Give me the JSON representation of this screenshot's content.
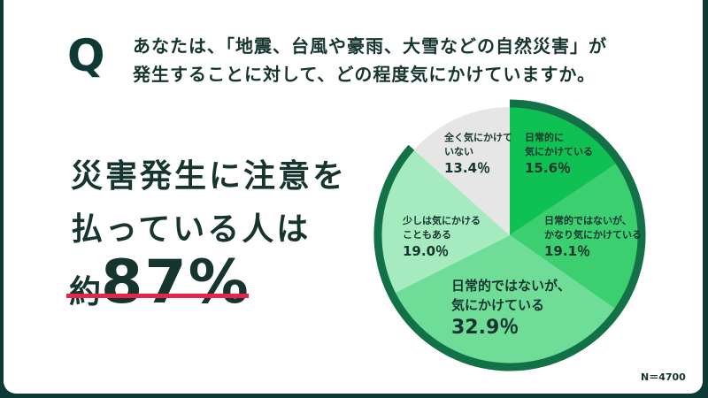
{
  "question": {
    "mark": "Q",
    "line1": "あなたは、「地震、台風や豪雨、大雪などの自然災害」が",
    "line2": "発生することに対して、どの程度気にかけていますか。"
  },
  "headline": {
    "line1": "災害発生に注意を",
    "line2": "払っている人は",
    "prefix": "約",
    "value": "87%"
  },
  "sample": "N＝4700",
  "colors": {
    "frame": "#0e3a35",
    "ring": "#137148",
    "underline": "#e5254a"
  },
  "chart_data": {
    "type": "pie",
    "title": "",
    "start": "top",
    "direction": "clockwise",
    "highlight_ring_percent": 86.6,
    "slices": [
      {
        "label_l1": "日常的に",
        "label_l2": "気にかけている",
        "value": 15.6,
        "display": "15.6％",
        "color": "#0fc152"
      },
      {
        "label_l1": "日常的ではないが、",
        "label_l2": "かなり気にかけている",
        "value": 19.1,
        "display": "19.1％",
        "color": "#3ccf70"
      },
      {
        "label_l1": "日常的ではないが、",
        "label_l2": "気にかけている",
        "value": 32.9,
        "display": "32.9％",
        "color": "#6fdd98"
      },
      {
        "label_l1": "少しは気にかける",
        "label_l2": "こともある",
        "value": 19.0,
        "display": "19.0％",
        "color": "#a6eac0"
      },
      {
        "label_l1": "全く気にかけて",
        "label_l2": "いない",
        "value": 13.4,
        "display": "13.4％",
        "color": "#e6e6e6"
      }
    ]
  }
}
